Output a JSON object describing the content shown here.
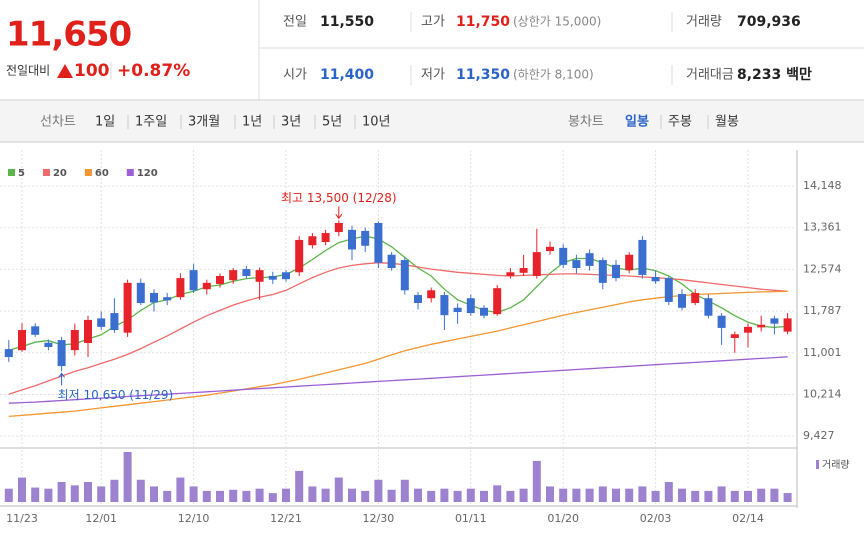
{
  "quote": {
    "price": "11,650",
    "change_label": "전일대비",
    "change": "100",
    "change_pct": "+0.87%",
    "prev_label": "전일",
    "prev": "11,550",
    "high_label": "고가",
    "high": "11,750",
    "upper_limit": "(상한가 15,000)",
    "volume_label": "거래량",
    "volume": "709,936",
    "open_label": "시가",
    "open": "11,400",
    "low_label": "저가",
    "low": "11,350",
    "lower_limit": "(하한가 8,100)",
    "amount_label": "거래대금",
    "amount": "8,233 백만"
  },
  "toolbar": {
    "line_label": "선차트",
    "line_periods": [
      "1일",
      "1주일",
      "3개월",
      "1년",
      "3년",
      "5년",
      "10년"
    ],
    "candle_label": "봉차트",
    "candle_periods": [
      "일봉",
      "주봉",
      "월봉"
    ]
  },
  "chart_data": {
    "type": "candlestick",
    "categories": [
      null,
      "11/23",
      null,
      null,
      null,
      null,
      null,
      "12/01",
      null,
      null,
      null,
      null,
      null,
      null,
      "12/10",
      null,
      null,
      null,
      null,
      null,
      null,
      "12/21",
      null,
      null,
      null,
      null,
      null,
      null,
      "12/30",
      null,
      null,
      null,
      null,
      null,
      null,
      "01/11",
      null,
      null,
      null,
      null,
      null,
      null,
      "01/20",
      null,
      null,
      null,
      null,
      null,
      null,
      "02/03",
      null,
      null,
      null,
      null,
      null,
      null,
      "02/14",
      null,
      null,
      null
    ],
    "open": [
      11070,
      11050,
      11500,
      11190,
      11240,
      11050,
      11185,
      11650,
      11750,
      11380,
      12320,
      12130,
      12050,
      12050,
      12560,
      12200,
      12300,
      12370,
      12580,
      12340,
      12450,
      12520,
      12520,
      13030,
      13090,
      13280,
      13320,
      13300,
      13450,
      12850,
      12750,
      12090,
      12030,
      12090,
      11850,
      12030,
      11850,
      11730,
      12450,
      12510,
      12450,
      12920,
      12980,
      12750,
      12880,
      12750,
      12660,
      12560,
      13130,
      12430,
      12410,
      12110,
      11940,
      12030,
      11700,
      11280,
      11380,
      11480,
      11650,
      11400
    ],
    "high": [
      11240,
      11560,
      11560,
      11250,
      11300,
      11550,
      11700,
      11780,
      12030,
      12380,
      12400,
      12200,
      12130,
      12500,
      12680,
      12380,
      12500,
      12600,
      12640,
      12610,
      12530,
      12560,
      13200,
      13260,
      13320,
      13500,
      13400,
      13360,
      13480,
      12900,
      12800,
      12150,
      12230,
      12150,
      11930,
      12100,
      11900,
      12280,
      12600,
      12850,
      13340,
      13100,
      13050,
      12850,
      12950,
      12800,
      12750,
      12900,
      13200,
      12550,
      12450,
      12200,
      12200,
      12100,
      11750,
      11400,
      11550,
      11700,
      11700,
      11750
    ],
    "low": [
      10830,
      11020,
      11300,
      11050,
      10650,
      10950,
      10920,
      11430,
      11380,
      11300,
      11900,
      11780,
      11900,
      12000,
      12130,
      12100,
      12230,
      12300,
      12400,
      12000,
      12300,
      12340,
      12450,
      12970,
      13030,
      13200,
      12750,
      12900,
      12600,
      12550,
      12100,
      11820,
      11950,
      11430,
      11550,
      11700,
      11650,
      11700,
      12400,
      12450,
      12400,
      12850,
      12600,
      12500,
      12550,
      12200,
      12350,
      12500,
      12400,
      12300,
      11900,
      11800,
      11900,
      11650,
      11150,
      11000,
      11100,
      11400,
      11350,
      11350
    ],
    "close": [
      10920,
      11430,
      11340,
      11110,
      10750,
      11430,
      11620,
      11490,
      11430,
      12320,
      11940,
      11950,
      11990,
      12410,
      12180,
      12320,
      12450,
      12560,
      12450,
      12560,
      12380,
      12390,
      13130,
      13200,
      13260,
      13450,
      12950,
      13020,
      12700,
      12600,
      12180,
      11940,
      12180,
      11710,
      11770,
      11750,
      11700,
      12220,
      12520,
      12600,
      12900,
      13000,
      12660,
      12600,
      12640,
      12320,
      12410,
      12850,
      12470,
      12350,
      11960,
      11850,
      12130,
      11700,
      11470,
      11350,
      11490,
      11530,
      11550,
      11650
    ],
    "volume": [
      1056000,
      1936000,
      1144000,
      1056000,
      1584000,
      1320000,
      1584000,
      1232000,
      1760000,
      3960000,
      1760000,
      1232000,
      880000,
      1936000,
      1232000,
      880000,
      880000,
      968000,
      880000,
      1056000,
      704000,
      1056000,
      2464000,
      1232000,
      1056000,
      1936000,
      1056000,
      880000,
      1760000,
      968000,
      1760000,
      1056000,
      880000,
      1056000,
      880000,
      1056000,
      880000,
      1320000,
      880000,
      1056000,
      3256000,
      1232000,
      1056000,
      1056000,
      1056000,
      1232000,
      1056000,
      1056000,
      1232000,
      880000,
      1584000,
      1056000,
      880000,
      880000,
      1232000,
      880000,
      880000,
      1056000,
      1056000,
      709936
    ],
    "volume_label": "거래량",
    "up_color": "#e8222a",
    "down_color": "#3a6fd0",
    "volume_color": "#9d82cf",
    "series": [
      {
        "name": "5",
        "color": "#5cb54a",
        "values": [
          11050,
          11120,
          11200,
          11230,
          11150,
          11170,
          11260,
          11340,
          11500,
          11620,
          11800,
          11950,
          12000,
          12100,
          12160,
          12250,
          12280,
          12350,
          12400,
          12420,
          12430,
          12480,
          12600,
          12760,
          12930,
          13080,
          13150,
          13200,
          13150,
          13000,
          12800,
          12600,
          12450,
          12200,
          12000,
          11900,
          11800,
          11760,
          11850,
          12000,
          12250,
          12500,
          12700,
          12780,
          12780,
          12700,
          12600,
          12560,
          12600,
          12550,
          12450,
          12300,
          12100,
          11980,
          11850,
          11700,
          11580,
          11500,
          11480,
          11500
        ]
      },
      {
        "name": "20",
        "color": "#ef6a6a",
        "values": [
          10220,
          10300,
          10380,
          10470,
          10560,
          10650,
          10720,
          10800,
          10880,
          10970,
          11080,
          11200,
          11320,
          11450,
          11580,
          11700,
          11800,
          11900,
          11980,
          12050,
          12100,
          12180,
          12300,
          12420,
          12520,
          12600,
          12650,
          12680,
          12700,
          12690,
          12660,
          12620,
          12580,
          12550,
          12520,
          12500,
          12480,
          12460,
          12450,
          12460,
          12470,
          12480,
          12490,
          12490,
          12480,
          12470,
          12460,
          12450,
          12430,
          12420,
          12400,
          12380,
          12350,
          12320,
          12290,
          12260,
          12230,
          12200,
          12180,
          12160
        ]
      },
      {
        "name": "60",
        "color": "#f3962f",
        "values": [
          9800,
          9820,
          9840,
          9860,
          9880,
          9900,
          9930,
          9960,
          9990,
          10020,
          10050,
          10080,
          10110,
          10140,
          10170,
          10200,
          10240,
          10280,
          10320,
          10360,
          10400,
          10450,
          10500,
          10560,
          10620,
          10680,
          10740,
          10800,
          10880,
          10960,
          11040,
          11100,
          11160,
          11210,
          11260,
          11310,
          11360,
          11410,
          11470,
          11530,
          11590,
          11650,
          11710,
          11760,
          11810,
          11860,
          11910,
          11960,
          12000,
          12030,
          12060,
          12080,
          12100,
          12110,
          12120,
          12130,
          12140,
          12150,
          12155,
          12160
        ]
      },
      {
        "name": "120",
        "color": "#9c5fd6",
        "values": [
          10050,
          10060,
          10070,
          10085,
          10100,
          10115,
          10130,
          10145,
          10160,
          10175,
          10190,
          10205,
          10220,
          10235,
          10250,
          10265,
          10280,
          10295,
          10310,
          10325,
          10340,
          10355,
          10370,
          10385,
          10400,
          10415,
          10430,
          10445,
          10460,
          10475,
          10490,
          10505,
          10520,
          10535,
          10550,
          10565,
          10580,
          10595,
          10610,
          10625,
          10640,
          10655,
          10670,
          10685,
          10700,
          10715,
          10730,
          10745,
          10760,
          10775,
          10790,
          10805,
          10820,
          10835,
          10850,
          10865,
          10880,
          10895,
          10910,
          10925
        ]
      }
    ],
    "ylim": [
      9204,
      14827
    ],
    "yticks": [
      {
        "value": 9427,
        "label": "9,427"
      },
      {
        "value": 10214,
        "label": "10,214"
      },
      {
        "value": 11001,
        "label": "11,001"
      },
      {
        "value": 11787,
        "label": "11,787"
      },
      {
        "value": 12574,
        "label": "12,574"
      },
      {
        "value": 13361,
        "label": "13,361"
      },
      {
        "value": 14148,
        "label": "14,148"
      }
    ],
    "grid": true,
    "annotations": {
      "high": "최고 13,500 (12/28)",
      "low": "최저 10,650 (11/29)"
    }
  }
}
